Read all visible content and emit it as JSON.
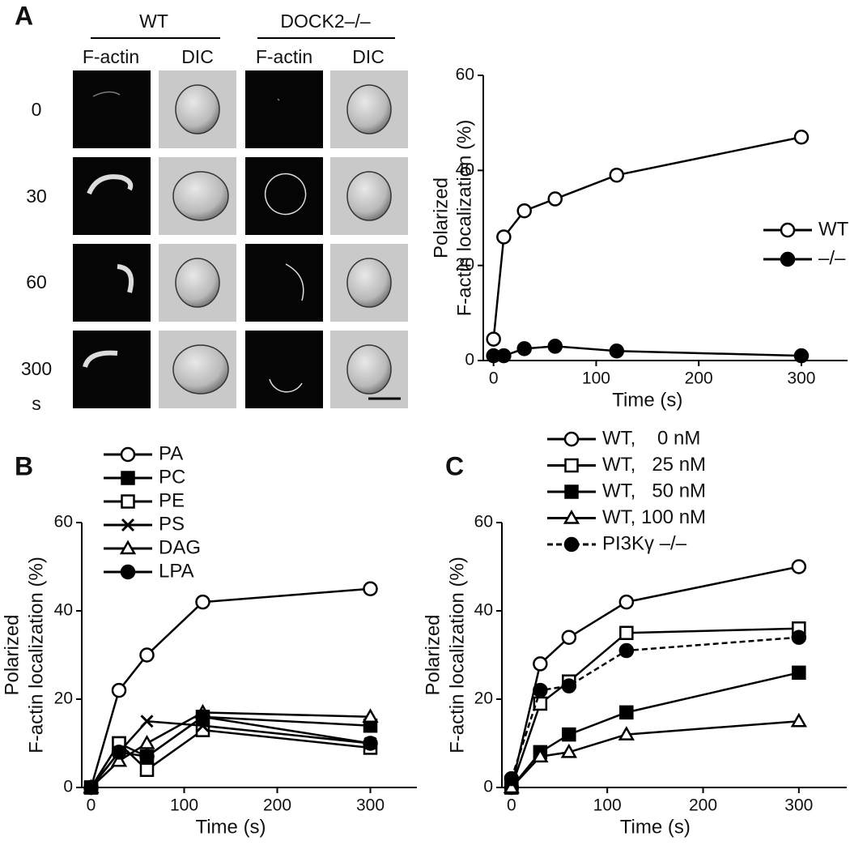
{
  "panel_labels": [
    "A",
    "B",
    "C"
  ],
  "micrographs": {
    "groups": [
      "WT",
      "DOCK2–/–"
    ],
    "columns": [
      "F-actin",
      "DIC",
      "F-actin",
      "DIC"
    ],
    "rows": [
      "0",
      "30",
      "60",
      "300"
    ],
    "unit": "s"
  },
  "chart_data": [
    {
      "type": "line",
      "xlabel": "Time (s)",
      "ylabel": [
        "Polarized",
        "F-actin localization (%)"
      ],
      "x": [
        0,
        10,
        30,
        60,
        120,
        300
      ],
      "xlim": [
        -10,
        345
      ],
      "ylim": [
        0,
        60
      ],
      "xticks": [
        0,
        100,
        200,
        300
      ],
      "yticks": [
        0,
        20,
        40,
        60
      ],
      "series": [
        {
          "name": "WT",
          "color": "#000000",
          "marker": "circle",
          "filled": false,
          "dashed": false,
          "values": [
            4.5,
            26,
            31.5,
            34,
            39,
            47
          ]
        },
        {
          "name": "–/–",
          "color": "#000000",
          "marker": "circle",
          "filled": true,
          "dashed": false,
          "values": [
            1,
            1,
            2.5,
            3,
            2,
            1
          ]
        }
      ]
    },
    {
      "type": "line",
      "xlabel": "Time (s)",
      "ylabel": [
        "Polarized",
        "F-actin localization (%)"
      ],
      "x": [
        0,
        30,
        60,
        120,
        300
      ],
      "xlim": [
        -10,
        350
      ],
      "ylim": [
        0,
        60
      ],
      "xticks": [
        0,
        100,
        200,
        300
      ],
      "yticks": [
        0,
        20,
        40,
        60
      ],
      "series": [
        {
          "name": "PA",
          "color": "#000000",
          "marker": "circle",
          "filled": false,
          "dashed": false,
          "values": [
            0,
            22,
            30,
            42,
            45
          ]
        },
        {
          "name": "PC",
          "color": "#000000",
          "marker": "square",
          "filled": true,
          "dashed": false,
          "values": [
            0,
            10,
            7,
            16,
            14
          ]
        },
        {
          "name": "PE",
          "color": "#000000",
          "marker": "square",
          "filled": false,
          "dashed": false,
          "values": [
            0,
            10,
            4,
            13,
            9
          ]
        },
        {
          "name": "PS",
          "color": "#000000",
          "marker": "cross",
          "filled": false,
          "dashed": false,
          "values": [
            0,
            8,
            15,
            14,
            10
          ]
        },
        {
          "name": "DAG",
          "color": "#000000",
          "marker": "triangle",
          "filled": false,
          "dashed": false,
          "values": [
            0,
            6,
            10,
            17,
            16
          ]
        },
        {
          "name": "LPA",
          "color": "#000000",
          "marker": "circle",
          "filled": true,
          "dashed": false,
          "values": [
            0,
            8,
            7,
            16,
            10
          ]
        }
      ]
    },
    {
      "type": "line",
      "xlabel": "Time (s)",
      "ylabel": [
        "Polarized",
        "F-actin localization (%)"
      ],
      "x": [
        0,
        30,
        60,
        120,
        300
      ],
      "xlim": [
        -10,
        350
      ],
      "ylim": [
        0,
        60
      ],
      "xticks": [
        0,
        100,
        200,
        300
      ],
      "yticks": [
        0,
        20,
        40,
        60
      ],
      "series": [
        {
          "name": "WT,    0 nM",
          "color": "#000000",
          "marker": "circle",
          "filled": false,
          "dashed": false,
          "values": [
            0,
            28,
            34,
            42,
            50
          ]
        },
        {
          "name": "WT,   25 nM",
          "color": "#000000",
          "marker": "square",
          "filled": false,
          "dashed": false,
          "values": [
            0,
            19,
            24,
            35,
            36
          ]
        },
        {
          "name": "WT,   50 nM",
          "color": "#000000",
          "marker": "square",
          "filled": true,
          "dashed": false,
          "values": [
            0,
            8,
            12,
            17,
            26
          ]
        },
        {
          "name": "WT, 100 nM",
          "color": "#000000",
          "marker": "triangle",
          "filled": false,
          "dashed": false,
          "values": [
            0,
            7,
            8,
            12,
            15
          ]
        },
        {
          "name": "PI3Kγ –/–",
          "color": "#000000",
          "marker": "circle",
          "filled": true,
          "dashed": true,
          "values": [
            2,
            22,
            23,
            31,
            34
          ]
        }
      ]
    }
  ]
}
